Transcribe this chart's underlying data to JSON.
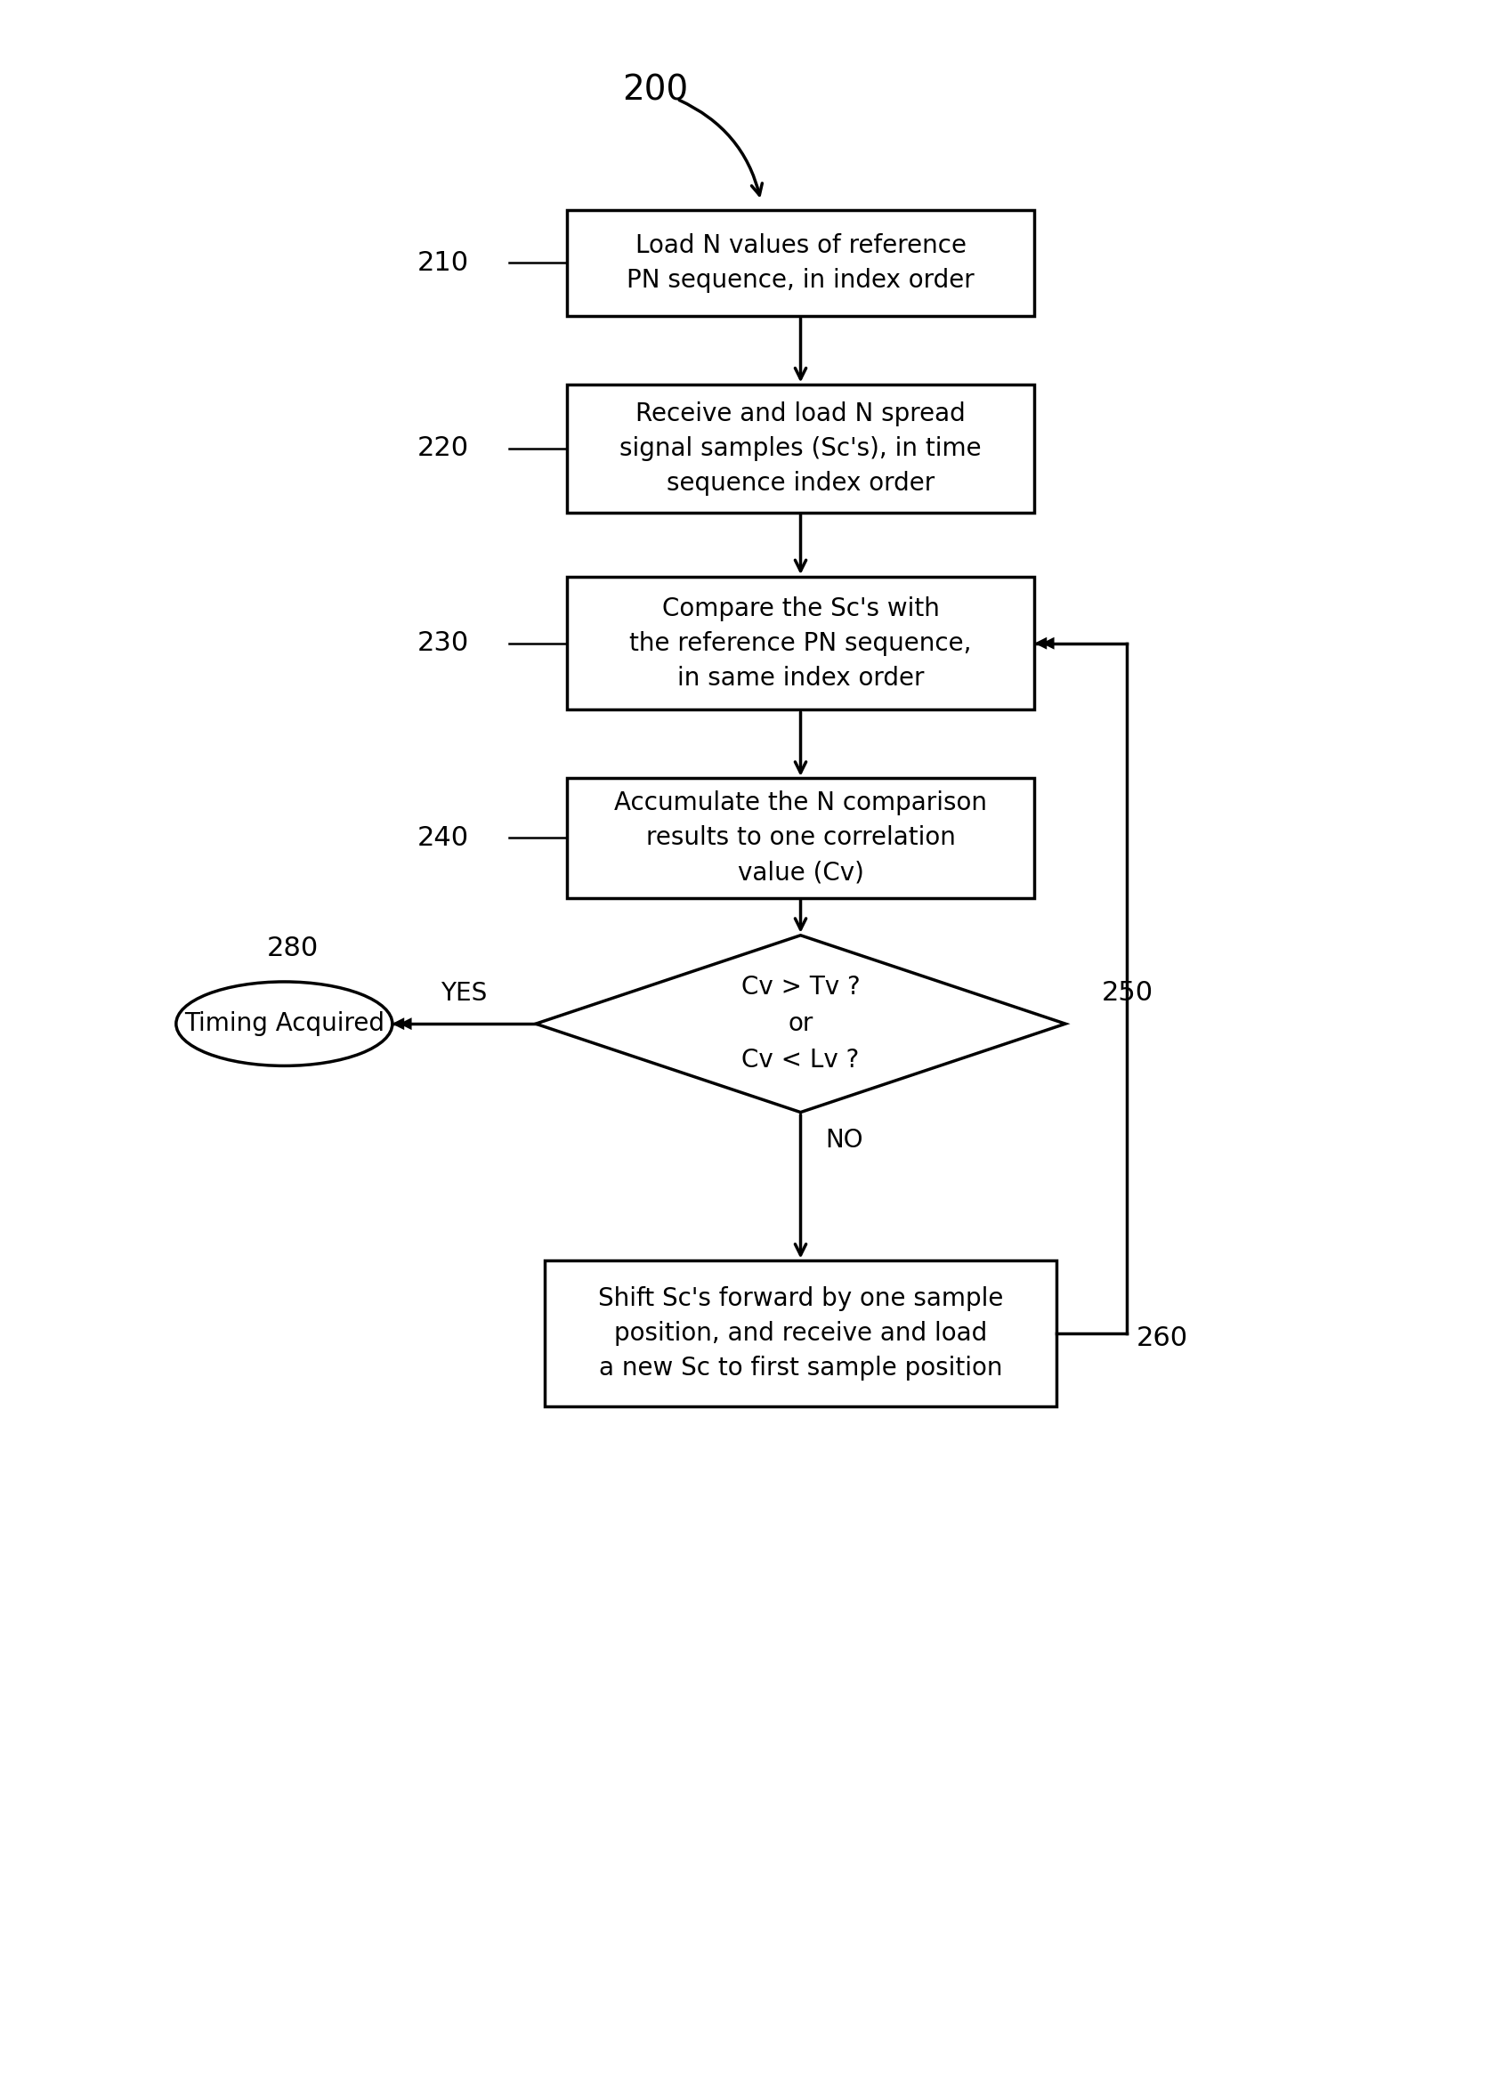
{
  "bg_color": "#ffffff",
  "label_200": "200",
  "label_210": "210",
  "label_220": "220",
  "label_230": "230",
  "label_240": "240",
  "label_250": "250",
  "label_260": "260",
  "label_280": "280",
  "box_210_text": "Load N values of reference\nPN sequence, in index order",
  "box_220_text": "Receive and load N spread\nsignal samples (Sc's), in time\nsequence index order",
  "box_230_text": "Compare the Sc's with\nthe reference PN sequence,\nin same index order",
  "box_240_text": "Accumulate the N comparison\nresults to one correlation\nvalue (Cv)",
  "diamond_250_text": "Cv > Tv ?\nor\nCv < Lv ?",
  "box_260_text": "Shift Sc's forward by one sample\nposition, and receive and load\na new Sc to first sample position",
  "oval_280_text": "Timing Acquired",
  "yes_label": "YES",
  "no_label": "NO",
  "line_color": "#000000",
  "box_fill": "#ffffff",
  "text_color": "#000000",
  "font_size": 20,
  "label_font_size": 22
}
